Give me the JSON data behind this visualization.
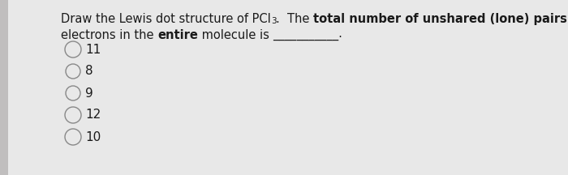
{
  "bg_color": "#e8e8e8",
  "left_bar_color": "#c0bebe",
  "text_color": "#1a1a1a",
  "options": [
    "11",
    "8",
    "9",
    "12",
    "10"
  ],
  "font_size_main": 10.5,
  "font_size_option": 11.0,
  "font_size_sub": 7.5
}
